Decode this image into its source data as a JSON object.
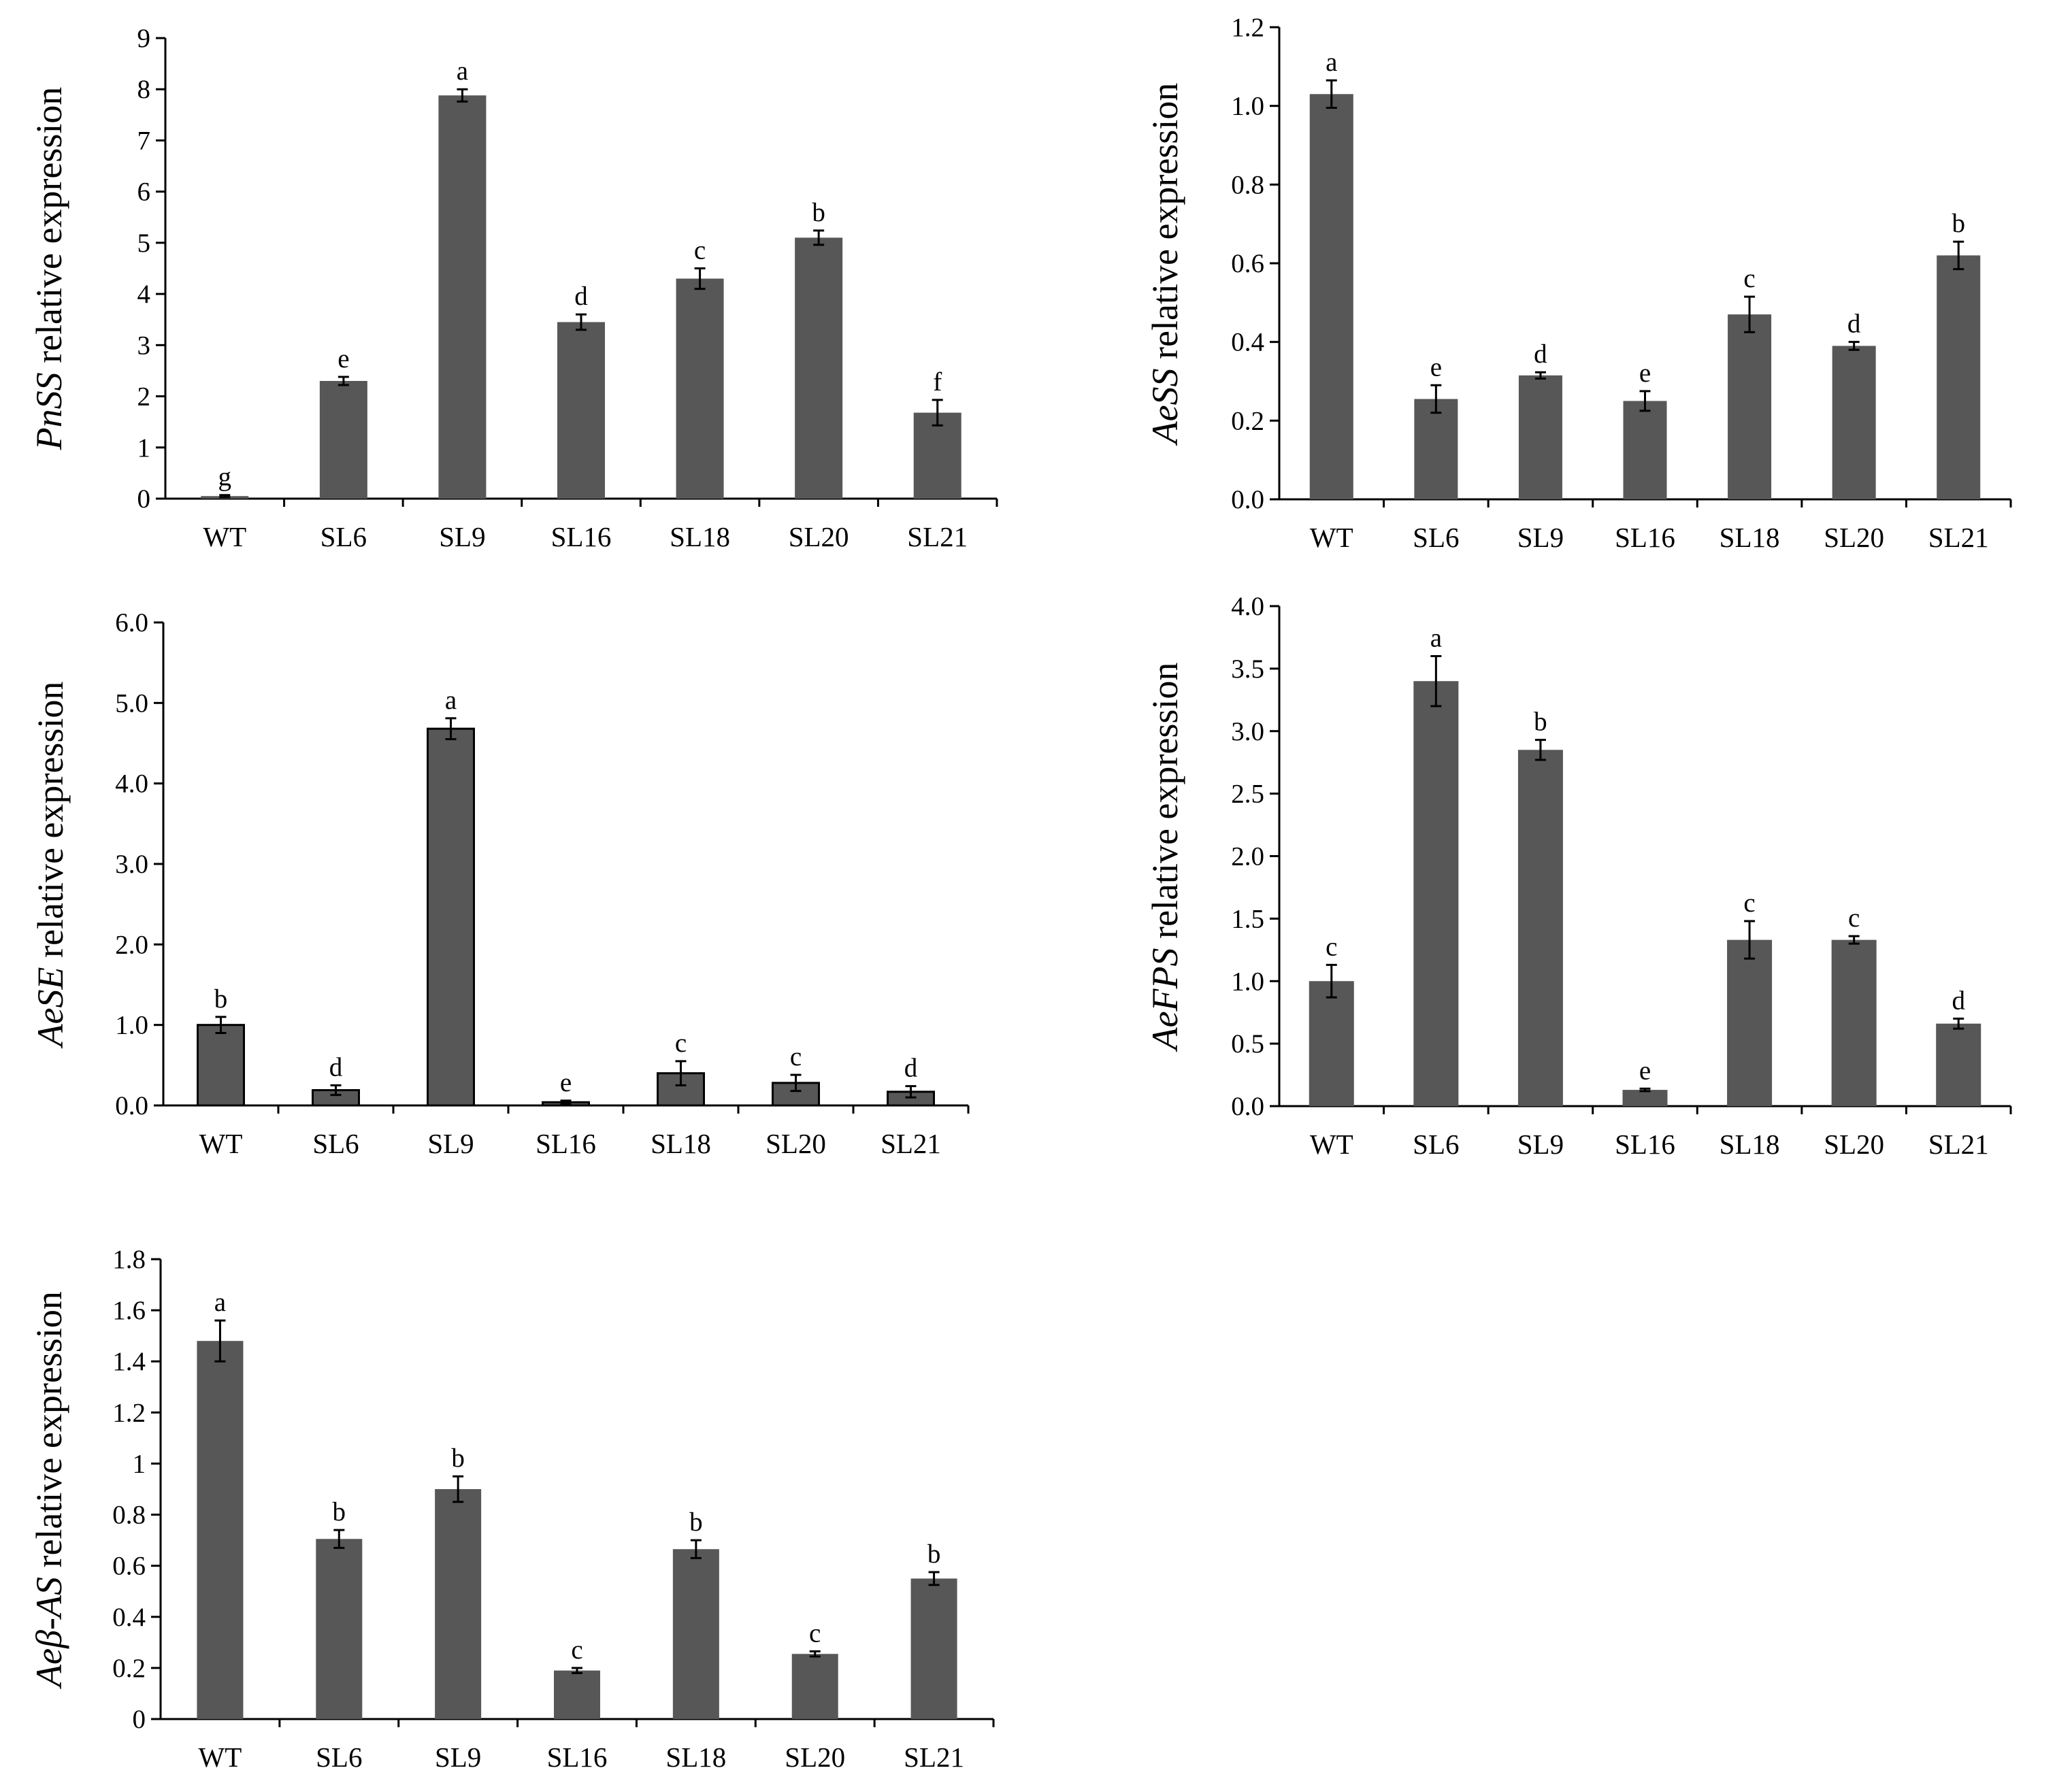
{
  "figure_title": "",
  "colors": {
    "bar": "#575757",
    "bar_outline": "#000000",
    "axis": "#000000"
  },
  "chart_data": [
    {
      "id": "pnss",
      "type": "bar",
      "ylabel_gene": "PnSS",
      "ylabel_suffix": " relative expression",
      "categories": [
        "WT",
        "SL6",
        "SL9",
        "SL16",
        "SL18",
        "SL20",
        "SL21"
      ],
      "values": [
        0.05,
        2.3,
        7.88,
        3.45,
        4.3,
        5.1,
        1.68
      ],
      "errors": [
        0.02,
        0.08,
        0.12,
        0.15,
        0.2,
        0.14,
        0.25
      ],
      "significance": [
        "g",
        "e",
        "a",
        "d",
        "c",
        "b",
        "f"
      ],
      "ylim": [
        0,
        9
      ],
      "yticks": [
        "0",
        "1",
        "2",
        "3",
        "4",
        "5",
        "6",
        "7",
        "8",
        "9"
      ]
    },
    {
      "id": "aess",
      "type": "bar",
      "ylabel_gene": "AeSS",
      "ylabel_suffix": " relative expression",
      "categories": [
        "WT",
        "SL6",
        "SL9",
        "SL16",
        "SL18",
        "SL20",
        "SL21"
      ],
      "values": [
        1.03,
        0.255,
        0.315,
        0.25,
        0.47,
        0.39,
        0.62
      ],
      "errors": [
        0.035,
        0.035,
        0.008,
        0.025,
        0.045,
        0.01,
        0.035
      ],
      "significance": [
        "a",
        "e",
        "d",
        "e",
        "c",
        "d",
        "b"
      ],
      "ylim": [
        0,
        1.2
      ],
      "yticks": [
        "0.0",
        "0.2",
        "0.4",
        "0.6",
        "0.8",
        "1.0",
        "1.2"
      ]
    },
    {
      "id": "aese",
      "type": "bar",
      "ylabel_gene": "AeSE",
      "ylabel_suffix": " relative expression",
      "categories": [
        "WT",
        "SL6",
        "SL9",
        "SL16",
        "SL18",
        "SL20",
        "SL21"
      ],
      "values": [
        1.0,
        0.19,
        4.68,
        0.04,
        0.4,
        0.28,
        0.17
      ],
      "errors": [
        0.1,
        0.06,
        0.13,
        0.02,
        0.15,
        0.1,
        0.07
      ],
      "significance": [
        "b",
        "d",
        "a",
        "e",
        "c",
        "c",
        "d"
      ],
      "ylim": [
        0,
        6
      ],
      "yticks": [
        "0.0",
        "1.0",
        "2.0",
        "3.0",
        "4.0",
        "5.0",
        "6.0"
      ]
    },
    {
      "id": "aefps",
      "type": "bar",
      "ylabel_gene": "AeFPS",
      "ylabel_suffix": " relative expression",
      "categories": [
        "WT",
        "SL6",
        "SL9",
        "SL16",
        "SL18",
        "SL20",
        "SL21"
      ],
      "values": [
        1.0,
        3.4,
        2.85,
        0.13,
        1.33,
        1.33,
        0.66
      ],
      "errors": [
        0.13,
        0.2,
        0.08,
        0.01,
        0.15,
        0.03,
        0.04
      ],
      "significance": [
        "c",
        "a",
        "b",
        "e",
        "c",
        "c",
        "d"
      ],
      "ylim": [
        0,
        4
      ],
      "yticks": [
        "0.0",
        "0.5",
        "1.0",
        "1.5",
        "2.0",
        "2.5",
        "3.0",
        "3.5",
        "4.0"
      ]
    },
    {
      "id": "aebas",
      "type": "bar",
      "ylabel_gene": "Aeβ-AS",
      "ylabel_suffix": " relative expression",
      "categories": [
        "WT",
        "SL6",
        "SL9",
        "SL16",
        "SL18",
        "SL20",
        "SL21"
      ],
      "values": [
        1.48,
        0.705,
        0.9,
        0.19,
        0.665,
        0.255,
        0.55
      ],
      "errors": [
        0.08,
        0.035,
        0.05,
        0.01,
        0.035,
        0.01,
        0.025
      ],
      "significance": [
        "a",
        "b",
        "b",
        "c",
        "b",
        "c",
        "b"
      ],
      "ylim": [
        0,
        1.8
      ],
      "yticks": [
        "0",
        "0.2",
        "0.4",
        "0.6",
        "0.8",
        "1",
        "1.2",
        "1.4",
        "1.6",
        "1.8"
      ]
    }
  ]
}
